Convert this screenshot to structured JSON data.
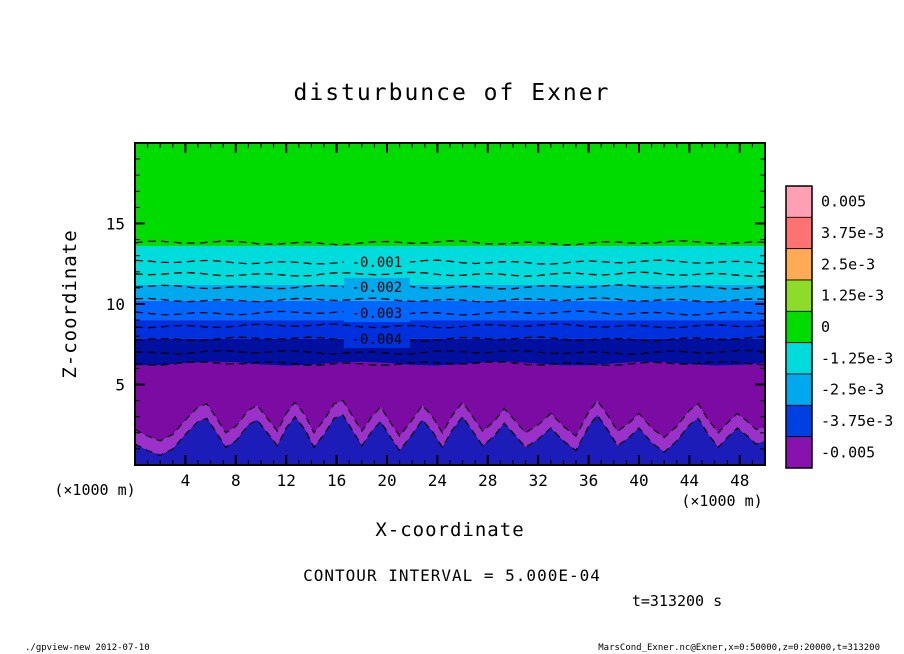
{
  "title": "disturbunce of Exner",
  "annotations": {
    "contour_interval_text": "CONTOUR INTERVAL = 5.000E-04",
    "time_text": "t=313200 s",
    "x_unit": "(×1000 m)",
    "y_unit": "(×1000 m)"
  },
  "footer": {
    "left": "./gpview-new  2012-07-10",
    "right": "MarsCond_Exner.nc@Exner,x=0:50000,z=0:20000,t=313200"
  },
  "chart_data": {
    "type": "heatmap",
    "title": "disturbunce of Exner",
    "xlabel": "X-coordinate",
    "ylabel": "Z-coordinate",
    "x_range": [
      0,
      50
    ],
    "z_range": [
      0,
      20
    ],
    "x_ticks": [
      4,
      8,
      12,
      16,
      20,
      24,
      28,
      32,
      36,
      40,
      44,
      48
    ],
    "y_ticks": [
      5,
      10,
      15
    ],
    "contour_interval": 0.0005,
    "bands": [
      {
        "value": "0 to -0.001",
        "from": 13.6,
        "to": 20,
        "color": "#00dc00"
      },
      {
        "value": "-0.001 to -0.002",
        "from": 11.2,
        "to": 13.6,
        "color": "#00dcdc"
      },
      {
        "value": "-0.002 to -0.0025",
        "from": 10.2,
        "to": 11.2,
        "color": "#00a8ee"
      },
      {
        "value": "-0.0025 to -0.003",
        "from": 9.0,
        "to": 10.2,
        "color": "#0066ff"
      },
      {
        "value": "-0.003 to -0.004",
        "from": 7.85,
        "to": 9.0,
        "color": "#0030dd"
      },
      {
        "value": "-0.004 to -0.005",
        "from": 5.8,
        "to": 7.85,
        "color": "#000f9e"
      },
      {
        "value": "below -0.005",
        "from": 0,
        "to": 6.3,
        "color": "#7c0ba3",
        "wavy_top": true
      }
    ],
    "purple_fringe": {
      "color": "#9c31c9",
      "offset": 0.9
    },
    "terrain": {
      "color": "#1c1cb8",
      "points": [
        [
          0,
          1.3
        ],
        [
          1,
          0.9
        ],
        [
          2,
          0.6
        ],
        [
          3,
          1.0
        ],
        [
          4,
          1.9
        ],
        [
          5,
          2.7
        ],
        [
          5.7,
          2.9
        ],
        [
          6.4,
          2.1
        ],
        [
          7.2,
          1.1
        ],
        [
          8,
          1.5
        ],
        [
          9,
          2.5
        ],
        [
          9.7,
          2.8
        ],
        [
          10.5,
          2.0
        ],
        [
          11.3,
          1.2
        ],
        [
          12,
          2.3
        ],
        [
          12.7,
          3.0
        ],
        [
          13.5,
          2.2
        ],
        [
          14.2,
          1.1
        ],
        [
          15,
          1.9
        ],
        [
          15.8,
          2.9
        ],
        [
          16.5,
          3.1
        ],
        [
          17.3,
          2.1
        ],
        [
          18,
          1.2
        ],
        [
          18.8,
          2.1
        ],
        [
          19.5,
          2.7
        ],
        [
          20.3,
          1.7
        ],
        [
          21,
          0.9
        ],
        [
          22,
          1.9
        ],
        [
          22.8,
          2.8
        ],
        [
          23.6,
          2.1
        ],
        [
          24.4,
          1.1
        ],
        [
          25.2,
          2.2
        ],
        [
          26,
          3.0
        ],
        [
          26.8,
          2.1
        ],
        [
          27.6,
          1.2
        ],
        [
          28.5,
          1.8
        ],
        [
          29.3,
          2.6
        ],
        [
          30,
          2.0
        ],
        [
          31,
          1.1
        ],
        [
          32,
          1.6
        ],
        [
          33,
          2.3
        ],
        [
          34,
          1.5
        ],
        [
          35,
          0.9
        ],
        [
          36,
          2.4
        ],
        [
          36.7,
          3.1
        ],
        [
          37.5,
          2.2
        ],
        [
          38.3,
          1.2
        ],
        [
          39.2,
          1.7
        ],
        [
          40,
          2.3
        ],
        [
          41,
          1.4
        ],
        [
          42,
          0.8
        ],
        [
          43,
          1.5
        ],
        [
          44,
          2.5
        ],
        [
          44.7,
          2.9
        ],
        [
          45.5,
          1.9
        ],
        [
          46.3,
          1.1
        ],
        [
          47,
          1.7
        ],
        [
          47.8,
          2.3
        ],
        [
          48.6,
          1.8
        ],
        [
          49.3,
          1.3
        ],
        [
          50,
          1.5
        ]
      ]
    },
    "contour_lines": [
      {
        "level": -0.0005,
        "z": 13.8
      },
      {
        "level": -0.001,
        "z": 12.6
      },
      {
        "level": -0.0015,
        "z": 11.85
      },
      {
        "level": -0.002,
        "z": 11.06
      },
      {
        "level": -0.0025,
        "z": 10.25
      },
      {
        "level": -0.003,
        "z": 9.44
      },
      {
        "level": -0.0035,
        "z": 8.64
      },
      {
        "level": -0.004,
        "z": 7.83
      },
      {
        "level": -0.0045,
        "z": 7.0
      },
      {
        "level": -0.005,
        "z": 6.3
      }
    ],
    "contour_labels": [
      {
        "text": "-0.001",
        "z": 12.6,
        "bg": "#00dcdc"
      },
      {
        "text": "-0.002",
        "z": 11.06,
        "bg": "#00a8ee"
      },
      {
        "text": "-0.003",
        "z": 9.44,
        "bg": "#0066ff"
      },
      {
        "text": "-0.004",
        "z": 7.83,
        "bg": "#0030dd"
      }
    ],
    "colorbar": {
      "labels": [
        "0.005",
        "3.75e-3",
        "2.5e-3",
        "1.25e-3",
        "0",
        "-1.25e-3",
        "-2.5e-3",
        "-3.75e-3",
        "-0.005"
      ],
      "colors": [
        "#ff9fb4",
        "#ff7272",
        "#ffaa55",
        "#8cdc28",
        "#00dc00",
        "#00dcdc",
        "#00a8ee",
        "#0040e0",
        "#8812ad"
      ]
    }
  }
}
